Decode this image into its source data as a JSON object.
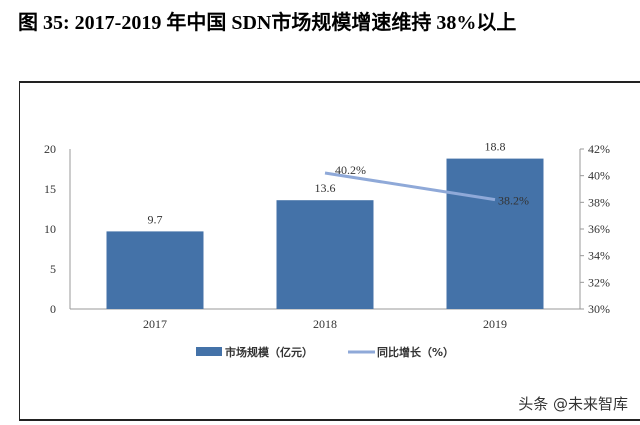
{
  "title": "图 35: 2017-2019 年中国 SDN市场规模增速维持 38%以上",
  "watermark": "头条 @未来智库",
  "chart_data": {
    "type": "bar",
    "categories": [
      "2017",
      "2018",
      "2019"
    ],
    "series": [
      {
        "name": "市场规模（亿元）",
        "type": "bar",
        "axis": "left",
        "values": [
          9.7,
          13.6,
          18.8
        ],
        "labels": [
          "9.7",
          "13.6",
          "18.8"
        ],
        "color": "#4472a8"
      },
      {
        "name": "同比增长（%）",
        "type": "line",
        "axis": "right",
        "values": [
          null,
          40.2,
          38.2
        ],
        "labels": [
          "",
          "40.2%",
          "38.2%"
        ],
        "color": "#8fa9d8"
      }
    ],
    "y_left": {
      "range": [
        0,
        20
      ],
      "ticks": [
        "0",
        "5",
        "10",
        "15",
        "20"
      ]
    },
    "y_right": {
      "range": [
        30,
        42
      ],
      "ticks": [
        "30%",
        "32%",
        "34%",
        "36%",
        "38%",
        "40%",
        "42%"
      ]
    },
    "grid": false,
    "legend_position": "bottom"
  }
}
